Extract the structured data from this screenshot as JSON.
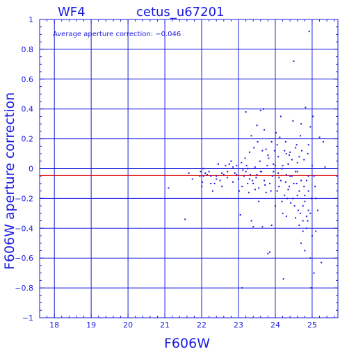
{
  "chart_data": {
    "type": "scatter",
    "corner_label": "WF4",
    "title": "cetus_u67201",
    "annotation": "Average aperture correction: −0.046",
    "xlabel": "F606W",
    "ylabel": "F606W aperture correction",
    "xlim": [
      17.6,
      25.7
    ],
    "ylim": [
      -1,
      1
    ],
    "x_ticks": [
      18,
      19,
      20,
      21,
      22,
      23,
      24,
      25
    ],
    "x_tick_labels": [
      "18",
      "19",
      "20",
      "21",
      "22",
      "23",
      "24",
      "25"
    ],
    "y_ticks": [
      -1,
      -0.8,
      -0.6,
      -0.4,
      -0.2,
      0,
      0.2,
      0.4,
      0.6,
      0.8,
      1
    ],
    "y_tick_labels": [
      "−1",
      "−0.8",
      "−0.6",
      "−0.4",
      "−0.2",
      "0",
      "0.2",
      "0.4",
      "0.6",
      "0.8",
      "1"
    ],
    "grid": true,
    "reference_line": {
      "y": -0.046,
      "color": "#e00000"
    },
    "colors": {
      "axes": "#1a1ae0",
      "points": "#1a1ae0",
      "reference_line": "#e00000"
    },
    "points": [
      [
        21.1,
        -0.13
      ],
      [
        21.55,
        -0.34
      ],
      [
        21.65,
        -0.03
      ],
      [
        21.75,
        -0.07
      ],
      [
        21.95,
        -0.05
      ],
      [
        21.97,
        -0.02
      ],
      [
        22.0,
        -0.12
      ],
      [
        22.02,
        -0.09
      ],
      [
        22.05,
        0.0
      ],
      [
        22.1,
        -0.03
      ],
      [
        22.2,
        -0.02
      ],
      [
        22.25,
        -0.05
      ],
      [
        22.3,
        -0.15
      ],
      [
        22.35,
        -0.1
      ],
      [
        22.4,
        -0.05
      ],
      [
        22.45,
        0.03
      ],
      [
        22.5,
        -0.08
      ],
      [
        22.55,
        -0.12
      ],
      [
        22.6,
        -0.04
      ],
      [
        22.65,
        0.02
      ],
      [
        22.7,
        -0.06
      ],
      [
        22.75,
        0.03
      ],
      [
        22.8,
        0.05
      ],
      [
        22.85,
        0.01
      ],
      [
        22.9,
        -0.03
      ],
      [
        22.95,
        0.02
      ],
      [
        23.0,
        -0.07
      ],
      [
        23.02,
        -0.15
      ],
      [
        23.05,
        -0.31
      ],
      [
        23.08,
        0.04
      ],
      [
        23.1,
        -0.8
      ],
      [
        23.12,
        -0.01
      ],
      [
        23.15,
        -0.05
      ],
      [
        23.18,
        0.07
      ],
      [
        23.2,
        0.38
      ],
      [
        23.22,
        0.02
      ],
      [
        23.25,
        -0.1
      ],
      [
        23.28,
        -0.16
      ],
      [
        23.3,
        0.11
      ],
      [
        23.32,
        -0.04
      ],
      [
        23.35,
        0.22
      ],
      [
        23.38,
        -0.08
      ],
      [
        23.4,
        -0.39
      ],
      [
        23.42,
        0.14
      ],
      [
        23.45,
        0.01
      ],
      [
        23.48,
        -0.06
      ],
      [
        23.5,
        0.29
      ],
      [
        23.52,
        0.18
      ],
      [
        23.55,
        -0.13
      ],
      [
        23.58,
        0.05
      ],
      [
        23.6,
        0.39
      ],
      [
        23.62,
        -0.02
      ],
      [
        23.65,
        -0.39
      ],
      [
        23.68,
        0.4
      ],
      [
        23.7,
        0.26
      ],
      [
        23.72,
        -0.11
      ],
      [
        23.75,
        0.13
      ],
      [
        23.78,
        0.02
      ],
      [
        23.8,
        -0.57
      ],
      [
        23.82,
        0.07
      ],
      [
        23.85,
        -0.56
      ],
      [
        23.88,
        -0.15
      ],
      [
        23.9,
        0.18
      ],
      [
        23.92,
        -0.05
      ],
      [
        23.95,
        0.03
      ],
      [
        23.98,
        0.12
      ],
      [
        24.0,
        -0.25
      ],
      [
        24.02,
        0.24
      ],
      [
        24.05,
        -0.15
      ],
      [
        24.08,
        0.08
      ],
      [
        24.1,
        -0.06
      ],
      [
        24.12,
        0.21
      ],
      [
        24.15,
        -0.08
      ],
      [
        24.18,
        0.0
      ],
      [
        24.2,
        -0.3
      ],
      [
        24.22,
        -0.74
      ],
      [
        24.25,
        -0.18
      ],
      [
        24.28,
        0.18
      ],
      [
        24.3,
        0.1
      ],
      [
        24.32,
        -0.2
      ],
      [
        24.35,
        0.03
      ],
      [
        24.38,
        -0.12
      ],
      [
        24.4,
        0.11
      ],
      [
        24.42,
        -0.23
      ],
      [
        24.45,
        -0.05
      ],
      [
        24.48,
        0.32
      ],
      [
        24.5,
        0.72
      ],
      [
        24.52,
        -0.25
      ],
      [
        24.55,
        0.14
      ],
      [
        24.58,
        -0.1
      ],
      [
        24.6,
        0.04
      ],
      [
        24.62,
        -0.28
      ],
      [
        24.65,
        -0.15
      ],
      [
        24.68,
        0.22
      ],
      [
        24.7,
        -0.08
      ],
      [
        24.72,
        0.12
      ],
      [
        24.75,
        -0.35
      ],
      [
        24.78,
        0.06
      ],
      [
        24.8,
        -0.22
      ],
      [
        24.82,
        0.41
      ],
      [
        24.85,
        -0.4
      ],
      [
        24.88,
        0.1
      ],
      [
        24.9,
        -0.28
      ],
      [
        24.92,
        0.92
      ],
      [
        24.95,
        -0.6
      ],
      [
        24.97,
        -0.8
      ],
      [
        25.0,
        -0.45
      ],
      [
        25.02,
        0.35
      ],
      [
        25.05,
        -0.7
      ],
      [
        25.08,
        -0.12
      ],
      [
        25.1,
        -0.2
      ],
      [
        25.15,
        -0.28
      ],
      [
        25.2,
        0.21
      ],
      [
        25.25,
        -0.63
      ],
      [
        25.3,
        0.18
      ],
      [
        25.35,
        0.01
      ],
      [
        23.35,
        -0.35
      ],
      [
        23.55,
        -0.22
      ],
      [
        23.9,
        -0.38
      ],
      [
        24.05,
        0.16
      ],
      [
        24.15,
        0.35
      ],
      [
        24.3,
        -0.32
      ],
      [
        24.45,
        0.06
      ],
      [
        24.6,
        -0.02
      ],
      [
        24.7,
        -0.5
      ],
      [
        24.8,
        -0.18
      ],
      [
        24.9,
        0.16
      ],
      [
        24.95,
        -0.3
      ],
      [
        25.0,
        0.02
      ],
      [
        24.85,
        -0.08
      ],
      [
        24.75,
        -0.42
      ],
      [
        24.65,
        0.08
      ],
      [
        24.55,
        -0.33
      ],
      [
        24.4,
        -0.05
      ],
      [
        24.25,
        0.12
      ],
      [
        24.1,
        -0.12
      ],
      [
        23.95,
        -0.02
      ],
      [
        23.8,
        0.09
      ],
      [
        23.7,
        -0.08
      ],
      [
        23.6,
        -0.02
      ],
      [
        23.45,
        -0.14
      ],
      [
        23.3,
        -0.07
      ],
      [
        23.2,
        -0.02
      ],
      [
        23.1,
        -0.12
      ],
      [
        22.95,
        -0.04
      ],
      [
        22.85,
        -0.09
      ],
      [
        22.7,
        -0.02
      ],
      [
        22.55,
        -0.03
      ],
      [
        22.4,
        -0.07
      ],
      [
        22.25,
        -0.1
      ],
      [
        22.15,
        -0.04
      ],
      [
        22.05,
        -0.05
      ],
      [
        24.9,
        -0.05
      ],
      [
        24.95,
        0.28
      ],
      [
        25.05,
        -0.05
      ],
      [
        24.85,
        -0.32
      ],
      [
        24.75,
        -0.25
      ],
      [
        24.65,
        -0.38
      ],
      [
        24.55,
        -0.02
      ],
      [
        24.35,
        -0.14
      ],
      [
        24.2,
        0.02
      ],
      [
        23.75,
        -0.16
      ],
      [
        23.65,
        0.12
      ],
      [
        23.5,
        -0.04
      ],
      [
        23.4,
        -0.1
      ],
      [
        23.25,
        0.0
      ],
      [
        24.9,
        -0.15
      ],
      [
        24.8,
        -0.55
      ],
      [
        24.7,
        0.3
      ],
      [
        24.6,
        -0.18
      ],
      [
        24.5,
        -0.1
      ],
      [
        24.3,
        -0.04
      ],
      [
        24.0,
        0.02
      ],
      [
        23.85,
        -0.1
      ],
      [
        24.98,
        -0.2
      ],
      [
        25.1,
        -0.42
      ],
      [
        24.88,
        -0.35
      ],
      [
        24.78,
        -0.12
      ],
      [
        24.68,
        -0.3
      ],
      [
        24.58,
        0.16
      ],
      [
        24.48,
        -0.2
      ],
      [
        24.38,
        0.09
      ],
      [
        24.28,
        -0.09
      ],
      [
        24.18,
        -0.22
      ],
      [
        24.08,
        -0.03
      ]
    ]
  }
}
